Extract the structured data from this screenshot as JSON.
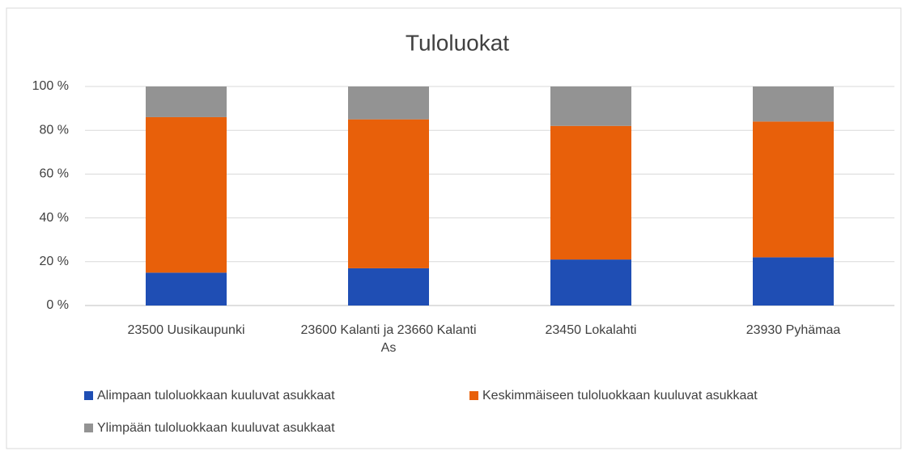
{
  "chart_data": {
    "type": "bar",
    "stacked": true,
    "title": "Tuloluokat",
    "categories": [
      "23500 Uusikaupunki",
      "23600 Kalanti ja 23660 Kalanti As",
      "23450 Lokalahti",
      "23930 Pyhämaa"
    ],
    "series": [
      {
        "name": "Alimpaan tuloluokkaan kuuluvat asukkaat",
        "color": "#1f4eb4",
        "values": [
          15,
          17,
          21,
          22
        ]
      },
      {
        "name": "Keskimmäiseen tuloluokkaan kuuluvat asukkaat",
        "color": "#e8600a",
        "values": [
          71,
          68,
          61,
          62
        ]
      },
      {
        "name": "Ylimpään tuloluokkaan kuuluvat asukkaat",
        "color": "#939393",
        "values": [
          14,
          15,
          18,
          16
        ]
      }
    ],
    "ylim": [
      0,
      100
    ],
    "yticks": [
      {
        "value": 0,
        "label": "0 %"
      },
      {
        "value": 20,
        "label": "20 %"
      },
      {
        "value": 40,
        "label": "40 %"
      },
      {
        "value": 60,
        "label": "60 %"
      },
      {
        "value": 80,
        "label": "80 %"
      },
      {
        "value": 100,
        "label": "100 %"
      }
    ],
    "grid": true,
    "legend": "bottom"
  }
}
